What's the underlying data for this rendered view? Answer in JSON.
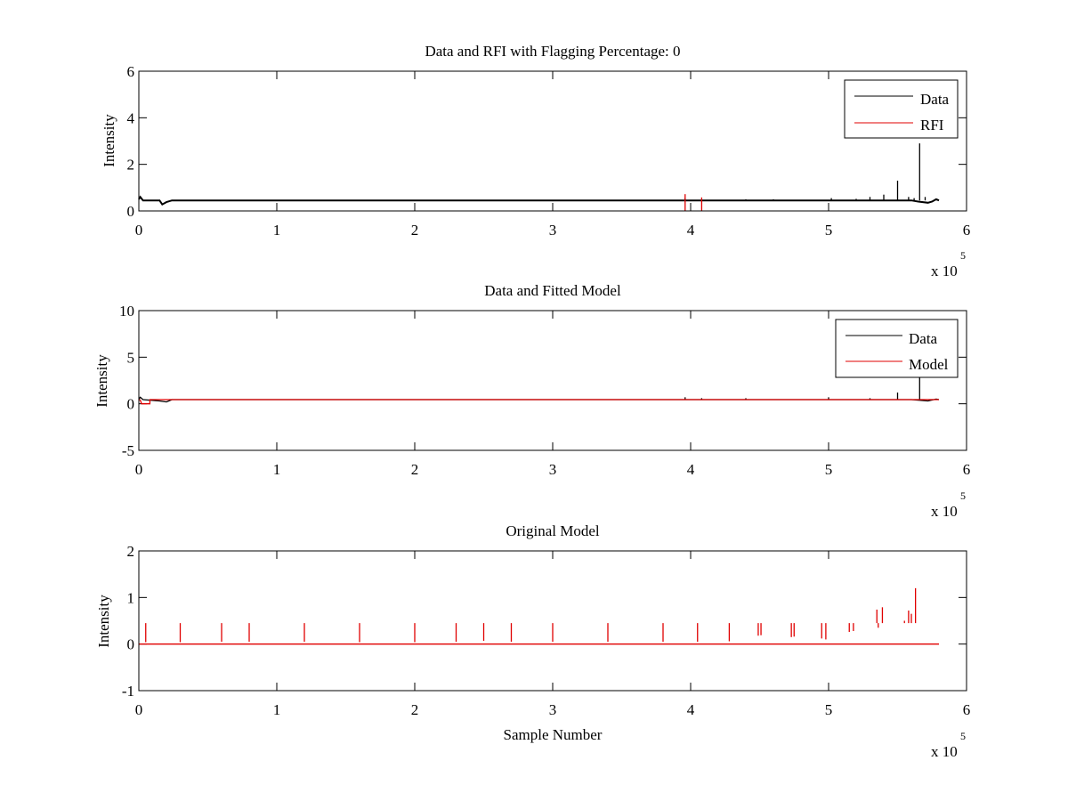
{
  "chart_data": [
    {
      "type": "line",
      "title": "Data and RFI with Flagging Percentage: 0",
      "xlabel": "",
      "ylabel": "Intensity",
      "xlim": [
        0,
        6
      ],
      "ylim": [
        0,
        6
      ],
      "xticks": [
        "0",
        "1",
        "2",
        "3",
        "4",
        "5",
        "6"
      ],
      "yticks": [
        "0",
        "2",
        "4",
        "6"
      ],
      "x_multiplier": "x 10",
      "x_multiplier_exp": "5",
      "legend": {
        "position": "top-right",
        "entries": [
          "Data",
          "RFI"
        ]
      },
      "series": [
        {
          "name": "Data",
          "color": "#000000",
          "baseline": [
            [
              0,
              0.5
            ],
            [
              0.01,
              0.6
            ],
            [
              0.03,
              0.45
            ],
            [
              0.15,
              0.45
            ],
            [
              0.17,
              0.28
            ],
            [
              0.2,
              0.38
            ],
            [
              0.24,
              0.45
            ],
            [
              5.6,
              0.45
            ],
            [
              5.65,
              0.4
            ],
            [
              5.72,
              0.35
            ],
            [
              5.75,
              0.4
            ],
            [
              5.78,
              0.5
            ],
            [
              5.8,
              0.45
            ]
          ],
          "spikes": [
            [
              3.96,
              0.55
            ],
            [
              4.08,
              0.5
            ],
            [
              4.4,
              0.5
            ],
            [
              4.6,
              0.5
            ],
            [
              5.02,
              0.55
            ],
            [
              5.2,
              0.52
            ],
            [
              5.3,
              0.6
            ],
            [
              5.4,
              0.7
            ],
            [
              5.5,
              1.3
            ],
            [
              5.58,
              0.6
            ],
            [
              5.62,
              0.55
            ],
            [
              5.66,
              2.9
            ],
            [
              5.7,
              0.6
            ]
          ]
        },
        {
          "name": "RFI",
          "color": "#e00000",
          "baseline": [],
          "spikes": [
            [
              3.96,
              0.72
            ],
            [
              4.08,
              0.58
            ]
          ]
        }
      ]
    },
    {
      "type": "line",
      "title": "Data and Fitted Model",
      "xlabel": "",
      "ylabel": "Intensity",
      "xlim": [
        0,
        6
      ],
      "ylim": [
        -5,
        10
      ],
      "xticks": [
        "0",
        "1",
        "2",
        "3",
        "4",
        "5",
        "6"
      ],
      "yticks": [
        "-5",
        "0",
        "5",
        "10"
      ],
      "x_multiplier": "x 10",
      "x_multiplier_exp": "5",
      "legend": {
        "position": "top-right",
        "entries": [
          "Data",
          "Model"
        ]
      },
      "series": [
        {
          "name": "Data",
          "color": "#000000",
          "baseline": [
            [
              0,
              0.5
            ],
            [
              0.01,
              0.7
            ],
            [
              0.03,
              0.45
            ],
            [
              0.15,
              0.3
            ],
            [
              0.2,
              0.2
            ],
            [
              0.24,
              0.45
            ],
            [
              5.6,
              0.45
            ],
            [
              5.72,
              0.3
            ],
            [
              5.78,
              0.5
            ],
            [
              5.8,
              0.45
            ]
          ],
          "spikes": [
            [
              3.96,
              0.7
            ],
            [
              4.08,
              0.6
            ],
            [
              4.4,
              0.6
            ],
            [
              5.0,
              0.7
            ],
            [
              5.3,
              0.6
            ],
            [
              5.5,
              1.2
            ],
            [
              5.66,
              3.2
            ]
          ]
        },
        {
          "name": "Model",
          "color": "#e00000",
          "baseline": [
            [
              0,
              0.45
            ],
            [
              0.01,
              0.4
            ],
            [
              0.02,
              0.0
            ],
            [
              0.08,
              0.0
            ],
            [
              0.08,
              0.45
            ],
            [
              5.8,
              0.45
            ]
          ],
          "spikes": []
        }
      ]
    },
    {
      "type": "line",
      "title": "Original Model",
      "xlabel": "Sample Number",
      "ylabel": "Intensity",
      "xlim": [
        0,
        6
      ],
      "ylim": [
        -1,
        2
      ],
      "xticks": [
        "0",
        "1",
        "2",
        "3",
        "4",
        "5",
        "6"
      ],
      "yticks": [
        "-1",
        "0",
        "1",
        "2"
      ],
      "x_multiplier": "x 10",
      "x_multiplier_exp": "5",
      "legend": null,
      "series": [
        {
          "name": "",
          "color": "#e00000",
          "baseline": [
            [
              0,
              0.0
            ],
            [
              5.8,
              0.0
            ]
          ],
          "spikes": [
            [
              0.05,
              0.04
            ],
            [
              0.3,
              0.04
            ],
            [
              0.6,
              0.05
            ],
            [
              0.8,
              0.05
            ],
            [
              1.2,
              0.05
            ],
            [
              1.6,
              0.04
            ],
            [
              2.0,
              0.04
            ],
            [
              2.3,
              0.05
            ],
            [
              2.5,
              0.07
            ],
            [
              2.7,
              0.05
            ],
            [
              3.0,
              0.05
            ],
            [
              3.4,
              0.05
            ],
            [
              3.8,
              0.05
            ],
            [
              4.05,
              0.05
            ],
            [
              4.28,
              0.06
            ],
            [
              4.49,
              0.18
            ],
            [
              4.51,
              0.19
            ],
            [
              4.73,
              0.15
            ],
            [
              4.75,
              0.16
            ],
            [
              4.95,
              0.12
            ],
            [
              4.98,
              0.1
            ],
            [
              5.15,
              0.26
            ],
            [
              5.18,
              0.28
            ],
            [
              5.35,
              0.74
            ],
            [
              5.36,
              0.35
            ],
            [
              5.39,
              0.79
            ],
            [
              5.55,
              0.5
            ],
            [
              5.58,
              0.72
            ],
            [
              5.6,
              0.65
            ],
            [
              5.63,
              1.2
            ]
          ]
        }
      ]
    }
  ]
}
